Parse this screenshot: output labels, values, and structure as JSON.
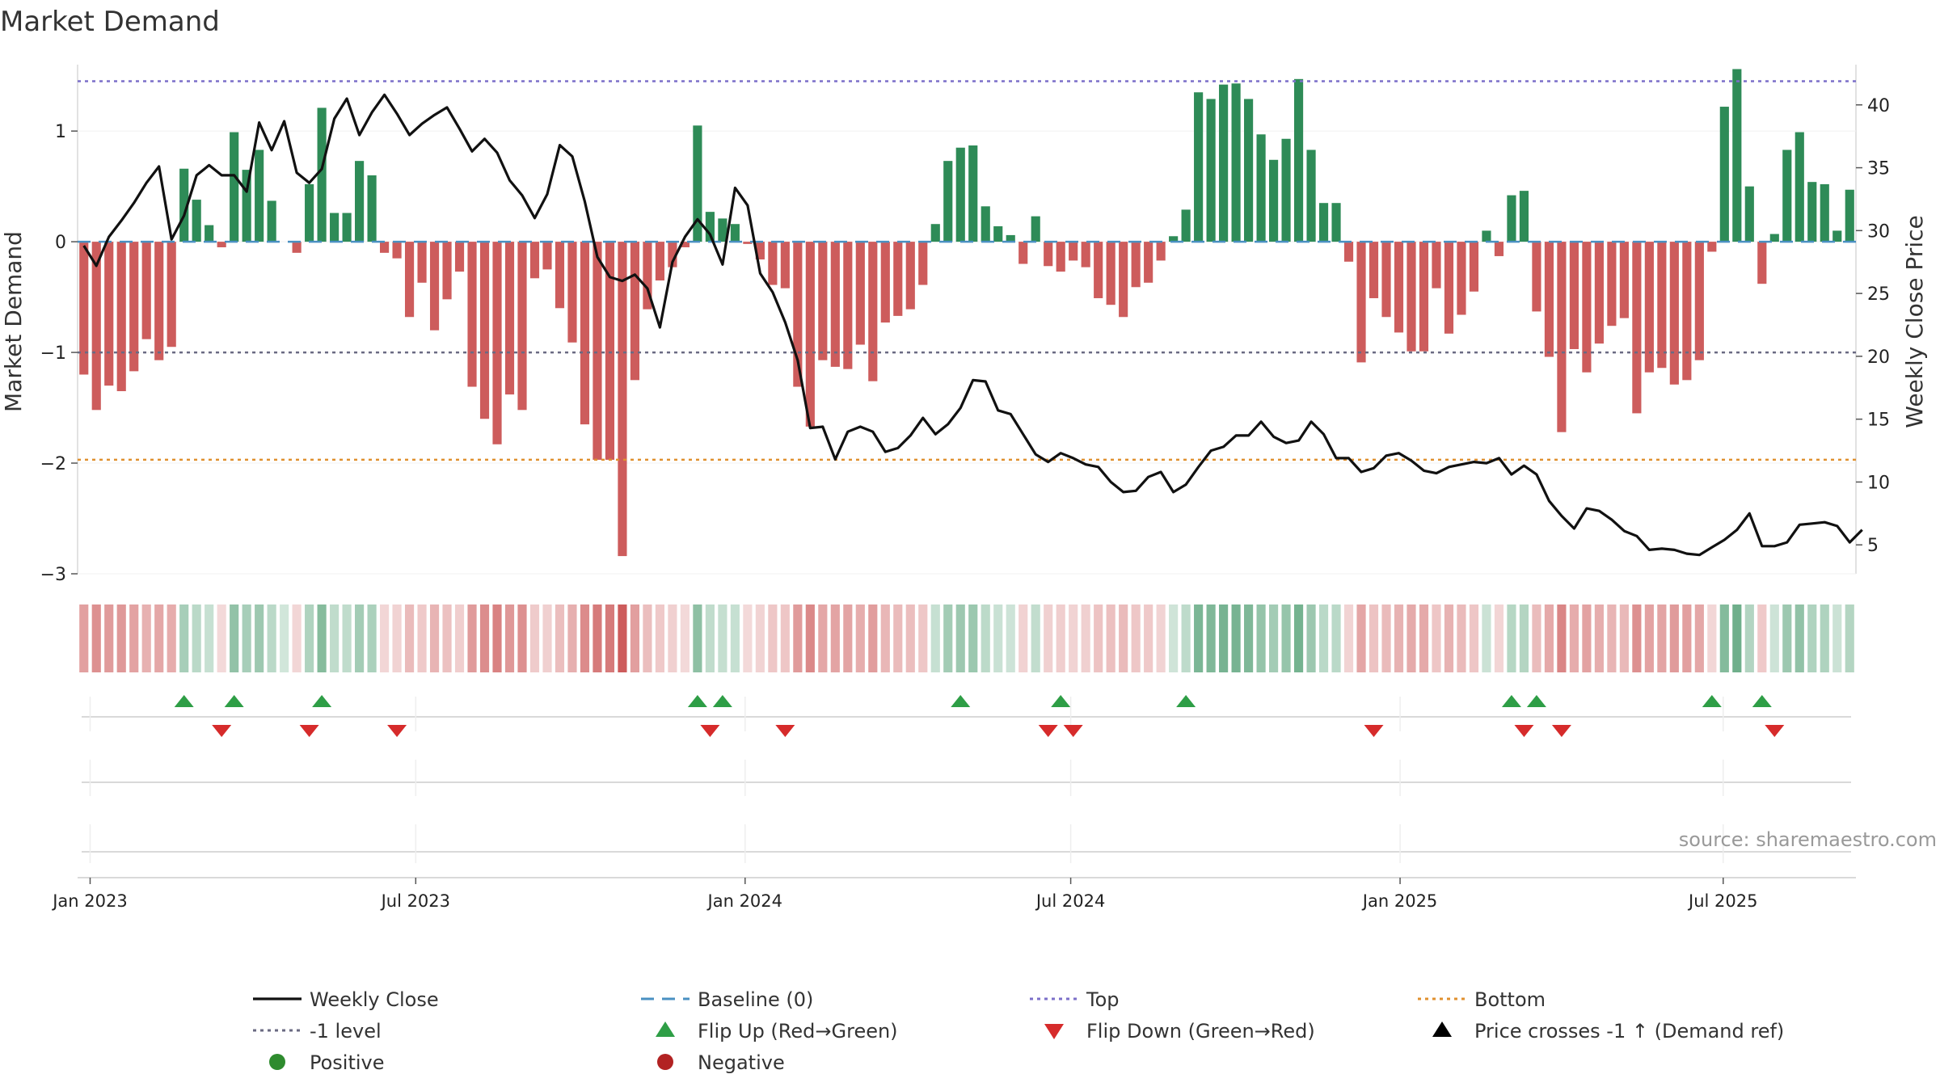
{
  "chart_data": {
    "type": "bar",
    "title": "Market Demand",
    "ylabel": "Market Demand",
    "y2label": "Weekly Close Price",
    "ylim": [
      -3.0,
      1.6
    ],
    "y2lim": [
      2.7,
      43.2
    ],
    "yticks": [
      1,
      0,
      -1,
      -2,
      -3
    ],
    "yticks_labels": [
      "1",
      "0",
      "−1",
      "−2",
      "−3"
    ],
    "y2ticks": [
      40,
      35,
      30,
      25,
      20,
      15,
      10,
      5
    ],
    "x_start": "2022-12-25",
    "x_end": "2025-10-05",
    "x_ticks": [
      {
        "label": "Jan 2023",
        "week": 1
      },
      {
        "label": "Jul 2023",
        "week": 27
      },
      {
        "label": "Jan 2024",
        "week": 53.3
      },
      {
        "label": "Jul 2024",
        "week": 79.3
      },
      {
        "label": "Jan 2025",
        "week": 105.6
      },
      {
        "label": "Jul 2025",
        "week": 131.4
      }
    ],
    "reference_lines": {
      "top": 1.45,
      "minus_one": -1.0,
      "bottom": -1.97,
      "baseline": 0
    },
    "series": [
      {
        "name": "Market Demand",
        "type": "bar",
        "values": [
          -1.2,
          -1.52,
          -1.3,
          -1.35,
          -1.17,
          -0.88,
          -1.07,
          -0.95,
          0.66,
          0.38,
          0.15,
          -0.05,
          0.99,
          0.65,
          0.83,
          0.37,
          0.0,
          -0.1,
          0.52,
          1.21,
          0.26,
          0.26,
          0.73,
          0.6,
          -0.1,
          -0.15,
          -0.68,
          -0.37,
          -0.8,
          -0.52,
          -0.27,
          -1.31,
          -1.6,
          -1.83,
          -1.38,
          -1.52,
          -0.33,
          -0.25,
          -0.6,
          -0.91,
          -1.65,
          -1.97,
          -1.97,
          -2.84,
          -1.25,
          -0.61,
          -0.35,
          -0.23,
          -0.05,
          1.05,
          0.27,
          0.21,
          0.16,
          -0.02,
          -0.16,
          -0.39,
          -0.42,
          -1.31,
          -1.67,
          -1.07,
          -1.13,
          -1.15,
          -0.93,
          -1.26,
          -0.73,
          -0.67,
          -0.61,
          -0.39,
          0.16,
          0.73,
          0.85,
          0.87,
          0.32,
          0.14,
          0.06,
          -0.2,
          0.23,
          -0.22,
          -0.27,
          -0.17,
          -0.23,
          -0.51,
          -0.57,
          -0.68,
          -0.41,
          -0.37,
          -0.17,
          0.05,
          0.29,
          1.35,
          1.29,
          1.42,
          1.43,
          1.29,
          0.97,
          0.74,
          0.93,
          1.47,
          0.83,
          0.35,
          0.35,
          -0.18,
          -1.09,
          -0.51,
          -0.68,
          -0.82,
          -0.99,
          -0.99,
          -0.42,
          -0.83,
          -0.66,
          -0.45,
          0.1,
          -0.13,
          0.42,
          0.46,
          -0.63,
          -1.04,
          -1.72,
          -0.97,
          -1.18,
          -0.92,
          -0.76,
          -0.69,
          -1.55,
          -1.18,
          -1.14,
          -1.29,
          -1.25,
          -1.07,
          -0.09,
          1.22,
          1.56,
          0.5,
          -0.38,
          0.07,
          0.83,
          0.99,
          0.54,
          0.52,
          0.1,
          0.47
        ]
      },
      {
        "name": "Weekly Close",
        "type": "line",
        "values": [
          28.8,
          27.2,
          29.5,
          30.8,
          32.2,
          33.8,
          35.1,
          29.3,
          31.2,
          34.4,
          35.2,
          34.4,
          34.4,
          33.1,
          38.6,
          36.4,
          38.7,
          34.6,
          33.8,
          34.9,
          38.9,
          40.5,
          37.6,
          39.4,
          40.8,
          39.3,
          37.6,
          38.5,
          39.2,
          39.8,
          38.1,
          36.3,
          37.3,
          36.2,
          34.0,
          32.8,
          31.0,
          32.9,
          36.8,
          35.9,
          32.3,
          27.9,
          26.3,
          26.0,
          26.5,
          25.4,
          22.3,
          27.5,
          29.5,
          30.9,
          29.7,
          27.3,
          33.4,
          32.0,
          26.6,
          25.1,
          22.7,
          19.7,
          14.3,
          14.4,
          11.8,
          14.0,
          14.4,
          14.0,
          12.4,
          12.7,
          13.7,
          15.1,
          13.8,
          14.6,
          15.9,
          18.1,
          18.0,
          15.7,
          15.4,
          13.8,
          12.2,
          11.6,
          12.3,
          11.9,
          11.4,
          11.2,
          10.0,
          9.2,
          9.3,
          10.4,
          10.8,
          9.2,
          9.8,
          11.2,
          12.5,
          12.8,
          13.7,
          13.7,
          14.8,
          13.6,
          13.1,
          13.3,
          14.8,
          13.8,
          11.9,
          11.9,
          10.8,
          11.1,
          12.1,
          12.3,
          11.7,
          10.9,
          10.7,
          11.2,
          11.4,
          11.6,
          11.5,
          11.9,
          10.6,
          11.3,
          10.6,
          8.5,
          7.3,
          6.3,
          7.9,
          7.7,
          7.0,
          6.1,
          5.7,
          4.6,
          4.7,
          4.6,
          4.3,
          4.2,
          4.8,
          5.4,
          6.2,
          7.5,
          4.9,
          4.9,
          5.2,
          6.6,
          6.7,
          6.8,
          6.5,
          5.2,
          6.2
        ]
      }
    ],
    "flip_up_weeks": [
      8,
      12,
      19,
      49,
      51,
      70,
      78,
      88,
      114,
      116,
      130,
      134
    ],
    "flip_down_weeks": [
      11,
      18,
      25,
      50,
      56,
      77,
      79,
      103,
      115,
      118,
      135
    ],
    "legend": [
      {
        "label": "Weekly Close",
        "marker": "solid-line",
        "color": "#111111"
      },
      {
        "label": "Baseline (0)",
        "marker": "dashed-line",
        "color": "#4a90c2"
      },
      {
        "label": "Top",
        "marker": "dotted-line",
        "color": "#7b6fc9"
      },
      {
        "label": "Bottom",
        "marker": "dotted-line",
        "color": "#e0902f"
      },
      {
        "label": "-1 level",
        "marker": "dotted-line",
        "color": "#6a6a82"
      },
      {
        "label": "Flip Up (Red→Green)",
        "marker": "triangle-up",
        "color": "#2e9e46"
      },
      {
        "label": "Flip Down (Green→Red)",
        "marker": "triangle-down",
        "color": "#d62b2b"
      },
      {
        "label": "Price crosses -1 ↑ (Demand ref)",
        "marker": "triangle-up",
        "color": "#000000"
      },
      {
        "label": "Positive",
        "marker": "circle",
        "color": "#2e8b2e"
      },
      {
        "label": "Negative",
        "marker": "circle",
        "color": "#b22222"
      }
    ],
    "source": "source: sharemaestro.com"
  },
  "colors": {
    "positive_bar": "#2e8b57",
    "negative_bar": "#cd5c5c",
    "positive_strip": "#2e8b57",
    "negative_strip": "#cd5c5c",
    "price_line": "#111111",
    "top_line": "#7b6fc9",
    "bottom_line": "#e0902f",
    "minus_one_line": "#6a6a82",
    "baseline": "#4a90c2",
    "flip_up": "#2e9e46",
    "flip_down": "#d62b2b",
    "grid": "#e5e5e5",
    "axis": "#d9d9d9"
  }
}
